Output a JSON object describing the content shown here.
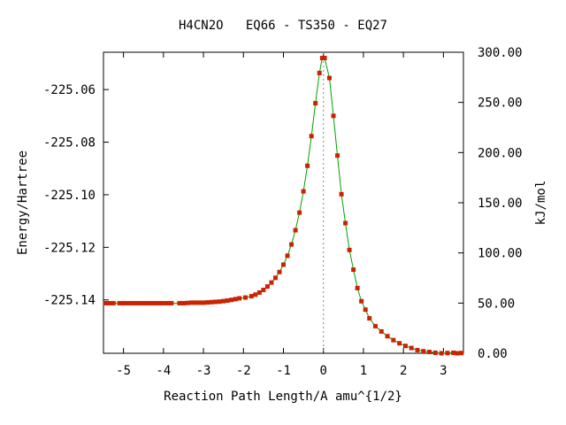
{
  "chart_data": {
    "type": "line",
    "title": "H4CN2O   EQ66 - TS350 - EQ27",
    "xlabel": "Reaction Path Length/A amu^{1/2}",
    "ylabel": "Energy/Hartree",
    "y2label": "kJ/mol",
    "xlim": [
      -5.5,
      3.5
    ],
    "ylim": [
      -225.1603,
      -225.0458
    ],
    "y2lim": [
      0,
      300
    ],
    "xticks": [
      -5,
      -4,
      -3,
      -2,
      -1,
      0,
      1,
      2,
      3
    ],
    "yticks": [
      -225.06,
      -225.08,
      -225.1,
      -225.12,
      -225.14
    ],
    "ytick_labels": [
      "-225.06",
      "-225.08",
      "-225.10",
      "-225.12",
      "-225.14"
    ],
    "y2ticks": [
      0,
      50,
      100,
      150,
      200,
      250,
      300
    ],
    "y2tick_labels": [
      "0.00",
      "50.00",
      "100.00",
      "150.00",
      "200.00",
      "250.00",
      "300.00"
    ],
    "ts_x": 0,
    "grid": false,
    "line_color": "#00a000",
    "marker_color": "#cc2200",
    "ts_line_color": "#888888",
    "series": [
      {
        "x": [
          -5.45,
          -5.35,
          -5.25,
          -5.1,
          -5.0,
          -4.9,
          -4.8,
          -4.7,
          -4.6,
          -4.5,
          -4.4,
          -4.3,
          -4.2,
          -4.1,
          -4.0,
          -3.9,
          -3.8,
          -3.6,
          -3.5,
          -3.4,
          -3.3,
          -3.2,
          -3.1,
          -3.0,
          -2.9,
          -2.8,
          -2.7,
          -2.6,
          -2.5,
          -2.4,
          -2.3,
          -2.2,
          -2.1,
          -1.95,
          -1.8,
          -1.7,
          -1.6,
          -1.5,
          -1.4,
          -1.3,
          -1.2,
          -1.1,
          -1.0,
          -0.9,
          -0.8,
          -0.7,
          -0.6,
          -0.5,
          -0.4,
          -0.3,
          -0.2,
          -0.1,
          -0.03,
          0.03,
          0.15,
          0.25,
          0.35,
          0.45,
          0.55,
          0.65,
          0.75,
          0.85,
          0.95,
          1.05,
          1.15,
          1.3,
          1.45,
          1.6,
          1.75,
          1.9,
          2.05,
          2.2,
          2.35,
          2.5,
          2.65,
          2.8,
          2.95,
          3.1,
          3.25,
          3.35,
          3.45
        ],
        "y": [
          -225.14125,
          -225.14125,
          -225.14125,
          -225.14125,
          -225.14125,
          -225.14125,
          -225.14125,
          -225.14125,
          -225.14125,
          -225.14125,
          -225.14125,
          -225.14125,
          -225.14125,
          -225.14125,
          -225.14125,
          -225.14125,
          -225.14125,
          -225.14125,
          -225.14125,
          -225.14115,
          -225.14105,
          -225.14105,
          -225.14105,
          -225.14105,
          -225.14095,
          -225.14085,
          -225.14075,
          -225.14065,
          -225.14045,
          -225.14025,
          -225.14,
          -225.1397,
          -225.1394,
          -225.1391,
          -225.1386,
          -225.138,
          -225.1372,
          -225.1362,
          -225.1349,
          -225.1334,
          -225.1316,
          -225.1294,
          -225.1266,
          -225.1232,
          -225.1189,
          -225.1135,
          -225.1068,
          -225.0987,
          -225.089,
          -225.0777,
          -225.0652,
          -225.0537,
          -225.048,
          -225.048,
          -225.0556,
          -225.07,
          -225.0851,
          -225.0998,
          -225.1108,
          -225.121,
          -225.1285,
          -225.1355,
          -225.1405,
          -225.1437,
          -225.147,
          -225.15,
          -225.152,
          -225.1538,
          -225.1553,
          -225.1565,
          -225.1575,
          -225.1583,
          -225.1591,
          -225.1595,
          -225.1598,
          -225.1601,
          -225.1603,
          -225.1602,
          -225.1601,
          -225.1603,
          -225.1602
        ]
      }
    ]
  }
}
